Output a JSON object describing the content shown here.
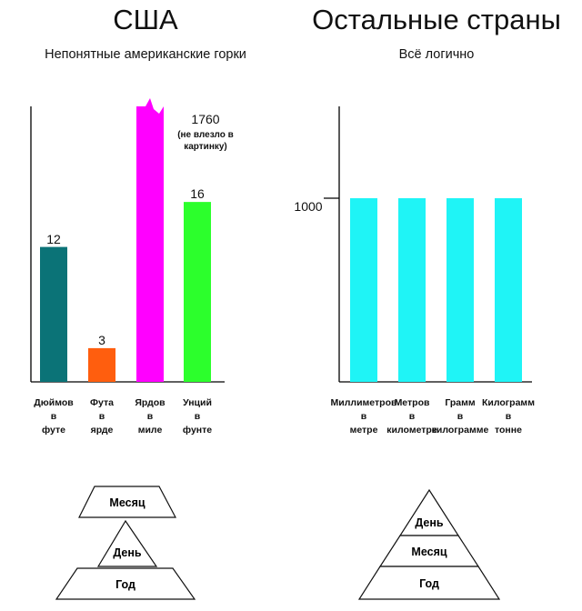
{
  "left": {
    "title": "США",
    "subtitle": "Непонятные американские горки",
    "colors": [
      "#0b7377",
      "#ff5e0e",
      "#ff00ff",
      "#2cff2c"
    ]
  },
  "right": {
    "title": "Остальные страны",
    "subtitle": "Всё логично",
    "color": "#1ff4f6"
  },
  "chart_data": [
    {
      "type": "bar",
      "title": "Непонятные американские горки",
      "categories": [
        "Дюймов\nв\nфуте",
        "Фута\nв\nярде",
        "Ярдов\nв\nмиле",
        "Унций\nв\nфунте"
      ],
      "values": [
        12,
        3,
        1760,
        16
      ],
      "value_labels": [
        "12",
        "3",
        "1760",
        "16"
      ],
      "annotation": "(не влезло в\nкартинку)",
      "ylim": [
        0,
        24.5
      ],
      "grid": false
    },
    {
      "type": "bar",
      "title": "Всё логично",
      "categories": [
        "Миллиметров\nв\nметре",
        "Метров\nв\nкилометре",
        "Грамм\nв\nкилограмме",
        "Килограмм\nв\nтонне"
      ],
      "values": [
        1000,
        1000,
        1000,
        1000
      ],
      "ytick_label": "1000",
      "ylim": [
        0,
        1500
      ],
      "grid": false
    }
  ],
  "pyramids": {
    "left": {
      "top": "Месяц",
      "middle": "День",
      "bottom": "Год"
    },
    "right": {
      "top": "День",
      "middle": "Месяц",
      "bottom": "Год"
    }
  }
}
